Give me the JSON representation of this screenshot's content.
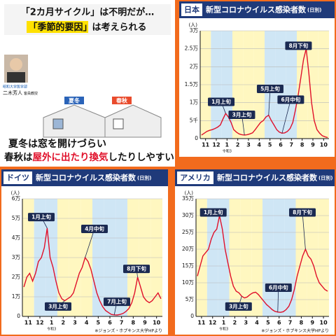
{
  "panel": {
    "headline1": "「2カ月サイクル」は不明だが…",
    "headline2_key": "「季節的要因」",
    "headline2_rest": "は考えられる",
    "person_affil": "昭和大学医学部",
    "person_name": "二木芳人",
    "person_title": "客員教授",
    "label_winter": "夏冬",
    "label_spring": "春秋",
    "line1": "夏冬は窓を開けづらい",
    "line2_a": "春秋は",
    "line2_b": "屋外に出たり換気",
    "line2_c": "したりしやすい"
  },
  "chart_data": [
    {
      "type": "line",
      "tag": "日本",
      "title": "新型コロナウイルス感染者数",
      "subtitle": "(日別)",
      "y_unit": "(人)",
      "era_label": "令和3",
      "color": "#e0102a",
      "xlim": [
        0,
        12
      ],
      "xticks": [
        {
          "value": 0.5,
          "label": "11"
        },
        {
          "value": 1.5,
          "label": "12"
        },
        {
          "value": 2.5,
          "label": "1"
        },
        {
          "value": 3.5,
          "label": "2"
        },
        {
          "value": 4.5,
          "label": "3"
        },
        {
          "value": 5.5,
          "label": "4"
        },
        {
          "value": 6.5,
          "label": "5"
        },
        {
          "value": 7.5,
          "label": "6"
        },
        {
          "value": 8.5,
          "label": "7"
        },
        {
          "value": 9.5,
          "label": "8"
        },
        {
          "value": 10.5,
          "label": "9"
        },
        {
          "value": 11.5,
          "label": "10"
        }
      ],
      "ylim": [
        0,
        30000
      ],
      "yticks": [
        0,
        {
          "value": 5000,
          "label": "5千"
        },
        {
          "value": 10000,
          "label": "1万"
        },
        {
          "value": 15000,
          "label": "1.5万"
        },
        {
          "value": 20000,
          "label": "2万"
        },
        {
          "value": 25000,
          "label": "2.5万"
        },
        {
          "value": 30000,
          "label": "3万"
        }
      ],
      "x": [
        0.125,
        0.375,
        0.625,
        0.875,
        1.125,
        1.375,
        1.625,
        1.875,
        2.125,
        2.375,
        2.625,
        2.875,
        3.125,
        3.375,
        3.625,
        3.875,
        4.125,
        4.375,
        4.625,
        4.875,
        5.125,
        5.375,
        5.625,
        5.875,
        6.125,
        6.375,
        6.625,
        6.875,
        7.125,
        7.375,
        7.625,
        7.875,
        8.125,
        8.375,
        8.625,
        8.875,
        9.125,
        9.375,
        9.625,
        9.875,
        10.125,
        10.375,
        10.625,
        10.875,
        11.125,
        11.375,
        11.625,
        11.875
      ],
      "values": [
        1000,
        1500,
        2000,
        2300,
        2500,
        2800,
        3200,
        3800,
        5500,
        7000,
        6000,
        4500,
        2500,
        1800,
        1300,
        1100,
        1000,
        1100,
        1300,
        1600,
        2500,
        3500,
        4500,
        5000,
        6000,
        6500,
        5000,
        3800,
        2500,
        1800,
        1500,
        1600,
        2000,
        2800,
        4500,
        8000,
        12000,
        17000,
        22000,
        25000,
        18000,
        10000,
        5000,
        2500,
        1500,
        800,
        500,
        300
      ],
      "annotations": [
        "1月上旬",
        "3月上旬",
        "5月上旬",
        "6月中旬",
        "8月下旬"
      ]
    },
    {
      "type": "line",
      "tag": "ドイツ",
      "title": "新型コロナウイルス感染者数",
      "subtitle": "(日別)",
      "y_unit": "(人)",
      "era_label": "令和3",
      "color": "#e0102a",
      "source": "※ジョンズ・ホプキンス大学HPより",
      "xlim": [
        0,
        12
      ],
      "xticks": [
        {
          "value": 0.5,
          "label": "11"
        },
        {
          "value": 1.5,
          "label": "12"
        },
        {
          "value": 2.5,
          "label": "1"
        },
        {
          "value": 3.5,
          "label": "2"
        },
        {
          "value": 4.5,
          "label": "3"
        },
        {
          "value": 5.5,
          "label": "4"
        },
        {
          "value": 6.5,
          "label": "5"
        },
        {
          "value": 7.5,
          "label": "6"
        },
        {
          "value": 8.5,
          "label": "7"
        },
        {
          "value": 9.5,
          "label": "8"
        },
        {
          "value": 10.5,
          "label": "9"
        },
        {
          "value": 11.5,
          "label": "10"
        }
      ],
      "ylim": [
        0,
        60000
      ],
      "yticks": [
        0,
        {
          "value": 10000,
          "label": "1万"
        },
        {
          "value": 20000,
          "label": "2万"
        },
        {
          "value": 30000,
          "label": "3万"
        },
        {
          "value": 40000,
          "label": "4万"
        },
        {
          "value": 50000,
          "label": "5万"
        },
        {
          "value": 60000,
          "label": "6万"
        }
      ],
      "x": [
        0.125,
        0.375,
        0.625,
        0.875,
        1.125,
        1.375,
        1.625,
        1.875,
        2.125,
        2.375,
        2.625,
        2.875,
        3.125,
        3.375,
        3.625,
        3.875,
        4.125,
        4.375,
        4.625,
        4.875,
        5.125,
        5.375,
        5.625,
        5.875,
        6.125,
        6.375,
        6.625,
        6.875,
        7.125,
        7.375,
        7.625,
        7.875,
        8.125,
        8.375,
        8.625,
        8.875,
        9.125,
        9.375,
        9.625,
        9.875,
        10.125,
        10.375,
        10.625,
        10.875,
        11.125,
        11.375,
        11.625,
        11.875
      ],
      "values": [
        15000,
        20000,
        22000,
        18000,
        22000,
        28000,
        30000,
        35000,
        45000,
        30000,
        25000,
        18000,
        12000,
        9000,
        8000,
        9000,
        10000,
        12000,
        17000,
        22000,
        25000,
        30000,
        28000,
        24000,
        18000,
        12000,
        8000,
        5000,
        3000,
        2000,
        1000,
        800,
        700,
        1000,
        1500,
        2500,
        4000,
        7000,
        12000,
        20000,
        15000,
        10000,
        8000,
        7000,
        8000,
        10000,
        12000,
        9000
      ],
      "annotations": [
        "1月上旬",
        "3月上旬",
        "4月中旬",
        "7月上旬",
        "8月下旬"
      ]
    },
    {
      "type": "line",
      "tag": "アメリカ",
      "title": "新型コロナウイルス感染者数",
      "subtitle": "(日別)",
      "y_unit": "(人)",
      "era_label": "令和3",
      "color": "#e0102a",
      "source": "※ジョンズ・ホプキンス大学HPより",
      "xlim": [
        0,
        12
      ],
      "xticks": [
        {
          "value": 0.5,
          "label": "11"
        },
        {
          "value": 1.5,
          "label": "12"
        },
        {
          "value": 2.5,
          "label": "1"
        },
        {
          "value": 3.5,
          "label": "2"
        },
        {
          "value": 4.5,
          "label": "3"
        },
        {
          "value": 5.5,
          "label": "4"
        },
        {
          "value": 6.5,
          "label": "5"
        },
        {
          "value": 7.5,
          "label": "6"
        },
        {
          "value": 8.5,
          "label": "7"
        },
        {
          "value": 9.5,
          "label": "8"
        },
        {
          "value": 10.5,
          "label": "9"
        },
        {
          "value": 11.5,
          "label": "10"
        }
      ],
      "ylim": [
        0,
        350000
      ],
      "yticks": [
        0,
        {
          "value": 50000,
          "label": "5万"
        },
        {
          "value": 100000,
          "label": "10万"
        },
        {
          "value": 150000,
          "label": "15万"
        },
        {
          "value": 200000,
          "label": "20万"
        },
        {
          "value": 250000,
          "label": "25万"
        },
        {
          "value": 300000,
          "label": "30万"
        },
        {
          "value": 350000,
          "label": "35万"
        }
      ],
      "x": [
        0.125,
        0.375,
        0.625,
        0.875,
        1.125,
        1.375,
        1.625,
        1.875,
        2.125,
        2.375,
        2.625,
        2.875,
        3.125,
        3.375,
        3.625,
        3.875,
        4.125,
        4.375,
        4.625,
        4.875,
        5.125,
        5.375,
        5.625,
        5.875,
        6.125,
        6.375,
        6.625,
        6.875,
        7.125,
        7.375,
        7.625,
        7.875,
        8.125,
        8.375,
        8.625,
        8.875,
        9.125,
        9.375,
        9.625,
        9.875,
        10.125,
        10.375,
        10.625,
        10.875,
        11.125,
        11.375,
        11.625,
        11.875
      ],
      "values": [
        120000,
        150000,
        180000,
        190000,
        200000,
        230000,
        250000,
        260000,
        300000,
        260000,
        200000,
        160000,
        120000,
        90000,
        75000,
        70000,
        60000,
        55000,
        58000,
        65000,
        70000,
        72000,
        65000,
        55000,
        45000,
        35000,
        28000,
        20000,
        15000,
        13000,
        12000,
        14000,
        20000,
        30000,
        50000,
        80000,
        120000,
        150000,
        180000,
        200000,
        180000,
        170000,
        150000,
        120000,
        100000,
        90000,
        80000,
        75000
      ],
      "annotations": [
        "1月上旬",
        "3月上旬",
        "6月中旬",
        "8月下旬"
      ]
    }
  ]
}
